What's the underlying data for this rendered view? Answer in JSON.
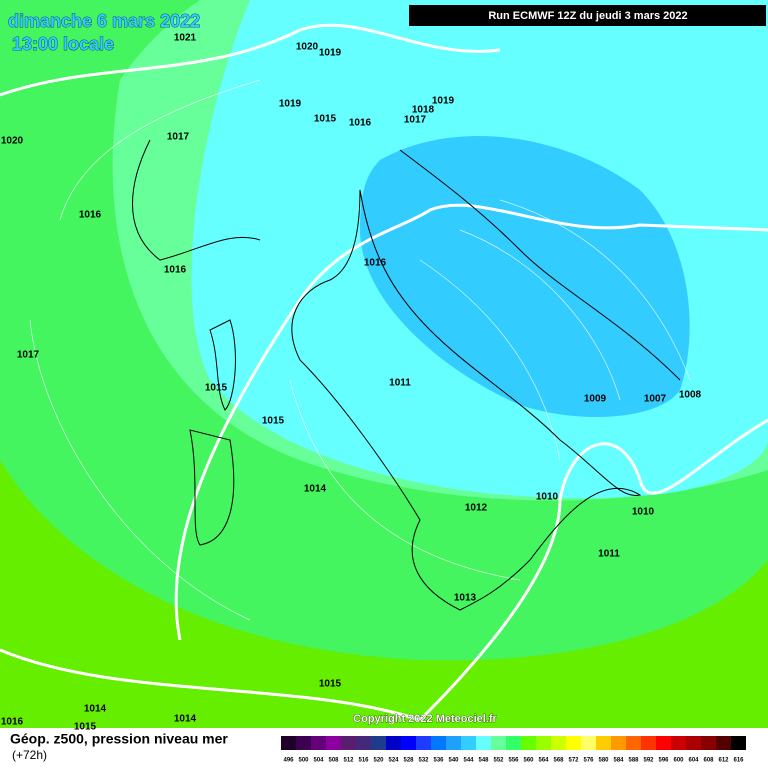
{
  "header": {
    "date": "dimanche 6 mars 2022",
    "time": "13:00 locale",
    "run": "Run ECMWF 12Z du jeudi 3 mars 2022"
  },
  "isobars": [
    "1021",
    "1020",
    "1019",
    "1019",
    "1015",
    "1016",
    "1017",
    "1018",
    "1019",
    "1017",
    "1020",
    "1016",
    "1016",
    "1016",
    "1017",
    "1015",
    "1011",
    "1015",
    "1009",
    "1007",
    "1008",
    "1014",
    "1010",
    "1012",
    "1010",
    "1011",
    "1013",
    "1015",
    "1014",
    "1014",
    "1016",
    "1015"
  ],
  "footer": {
    "title": "Géop. z500, pression niveau mer",
    "lead": "(+72h)",
    "copyright": "Copyright 2022 Meteociel.fr"
  },
  "scale": {
    "labels": [
      496,
      500,
      504,
      508,
      512,
      516,
      520,
      524,
      528,
      532,
      536,
      540,
      544,
      548,
      552,
      556,
      560,
      564,
      568,
      572,
      576,
      580,
      584,
      588,
      592,
      596,
      600,
      604,
      608,
      612,
      616
    ],
    "colors": [
      "#1e0028",
      "#3c0050",
      "#640078",
      "#8c00a0",
      "#5a1e6e",
      "#462878",
      "#1e3c8c",
      "#0000c8",
      "#0000ff",
      "#1e3cff",
      "#0078ff",
      "#1ea0ff",
      "#33ccff",
      "#66ffff",
      "#66ff99",
      "#33ff66",
      "#66ff00",
      "#99ff00",
      "#ccff00",
      "#ffff00",
      "#ffff66",
      "#ffcc00",
      "#ff9900",
      "#ff6600",
      "#ff3300",
      "#ff0000",
      "#cc0000",
      "#aa0000",
      "#880000",
      "#550000",
      "#000000"
    ]
  }
}
